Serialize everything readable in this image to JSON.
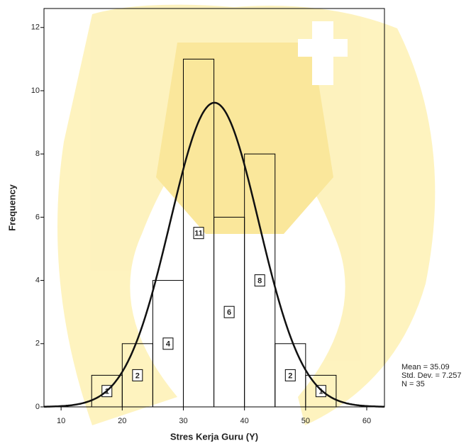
{
  "chart_data": {
    "type": "histogram",
    "x_label": "Stres Kerja Guru (Y)",
    "y_label": "Frequency",
    "bins": [
      15,
      20,
      25,
      30,
      35,
      40,
      45,
      50,
      55
    ],
    "values": [
      1,
      2,
      4,
      11,
      6,
      8,
      2,
      1
    ],
    "color": "none",
    "xlim": [
      7.2,
      62.9
    ],
    "xticks": [
      10,
      20,
      30,
      40,
      50,
      60
    ],
    "ylim": [
      0,
      12.6
    ],
    "yticks": [
      0,
      2,
      4,
      6,
      8,
      10,
      12
    ],
    "normal_curve": {
      "mean": 35.09,
      "std": 7.257,
      "n": 35,
      "labels": [
        "Mean = 35.09",
        "Std. Dev. = 7.257",
        "N = 35"
      ]
    }
  }
}
